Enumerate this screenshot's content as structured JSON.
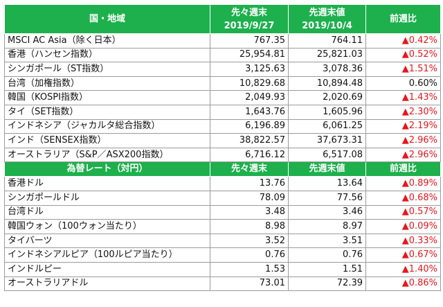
{
  "stock_header": {
    "region": "国・地域",
    "prev_prev_week_line1": "先々週末",
    "prev_prev_week_line2": "2019/9/27",
    "prev_week_line1": "先週末値",
    "prev_week_line2": "2019/10/4",
    "change": "前週比"
  },
  "stock_rows": [
    {
      "name": "MSCI AC Asia（除く日本）",
      "prev2": "767.35",
      "prev1": "764.11",
      "change": "▲0.42%",
      "up": true
    },
    {
      "name": "香港（ハンセン指数）",
      "prev2": "25,954.81",
      "prev1": "25,821.03",
      "change": "▲0.52%",
      "up": true
    },
    {
      "name": "シンガポール（ST指数）",
      "prev2": "3,125.63",
      "prev1": "3,078.36",
      "change": "▲1.51%",
      "up": true
    },
    {
      "name": "台湾（加権指数）",
      "prev2": "10,829.68",
      "prev1": "10,894.48",
      "change": "0.60%",
      "up": false
    },
    {
      "name": "韓国（KOSPI指数）",
      "prev2": "2,049.93",
      "prev1": "2,020.69",
      "change": "▲1.43%",
      "up": true
    },
    {
      "name": "タイ（SET指数）",
      "prev2": "1,643.76",
      "prev1": "1,605.96",
      "change": "▲2.30%",
      "up": true
    },
    {
      "name": "インドネシア（ジャカルタ総合指数）",
      "prev2": "6,196.89",
      "prev1": "6,061.25",
      "change": "▲2.19%",
      "up": true
    },
    {
      "name": "インド（SENSEX指数）",
      "prev2": "38,822.57",
      "prev1": "37,673.31",
      "change": "▲2.96%",
      "up": true
    },
    {
      "name": "オーストラリア（S&P／ASX200指数）",
      "prev2": "6,716.12",
      "prev1": "6,517.08",
      "change": "▲2.96%",
      "up": true
    }
  ],
  "fx_header": {
    "title": "為替レート（対円）",
    "prev_prev_week": "先々週末",
    "prev_week": "先週末値",
    "change": "前週比"
  },
  "fx_rows": [
    {
      "name": "香港ドル",
      "prev2": "13.76",
      "prev1": "13.64",
      "change": "▲0.89%",
      "up": true
    },
    {
      "name": "シンガポールドル",
      "prev2": "78.09",
      "prev1": "77.56",
      "change": "▲0.68%",
      "up": true
    },
    {
      "name": "台湾ドル",
      "prev2": "3.48",
      "prev1": "3.46",
      "change": "▲0.57%",
      "up": true
    },
    {
      "name": "韓国ウォン（100ウォン当たり）",
      "prev2": "8.98",
      "prev1": "8.97",
      "change": "▲0.09%",
      "up": true
    },
    {
      "name": "タイバーツ",
      "prev2": "3.52",
      "prev1": "3.51",
      "change": "▲0.33%",
      "up": true
    },
    {
      "name": "インドネシアルピア（100ルピア当たり）",
      "prev2": "0.76",
      "prev1": "0.76",
      "change": "▲0.67%",
      "up": true
    },
    {
      "name": "インドルピー",
      "prev2": "1.53",
      "prev1": "1.51",
      "change": "▲1.40%",
      "up": true
    },
    {
      "name": "オーストラリアドル",
      "prev2": "73.01",
      "prev1": "72.39",
      "change": "▲0.86%",
      "up": true
    }
  ],
  "colors": {
    "header_bg": "#1db04d",
    "header_text": "#ffffff",
    "negative": "#e8161c",
    "border": "#9a9a9a"
  }
}
